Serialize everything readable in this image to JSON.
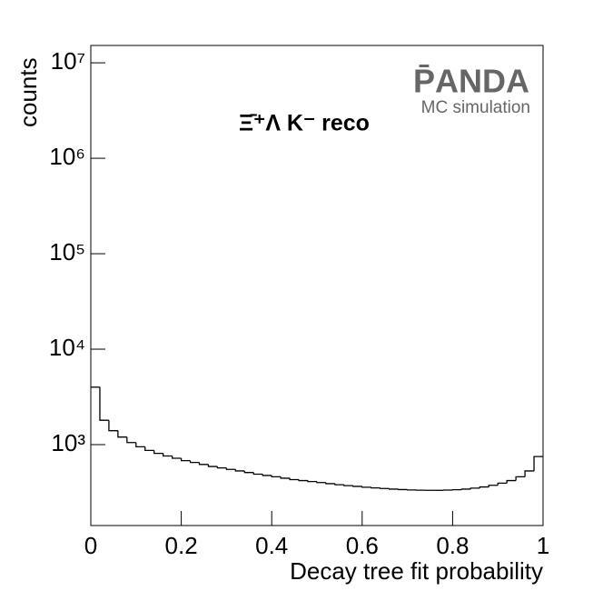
{
  "chart_data": {
    "type": "histogram",
    "title": "Ξ̄⁺Λ K⁻ reco",
    "x_label": "Decay tree fit probability",
    "y_label": "counts",
    "annotations": [
      "P̄ANDA",
      "MC simulation"
    ],
    "bins": [
      0,
      0.02,
      0.04,
      0.06,
      0.08,
      0.1,
      0.12,
      0.14,
      0.16,
      0.18,
      0.2,
      0.22,
      0.24,
      0.26,
      0.28,
      0.3,
      0.32,
      0.34,
      0.36,
      0.38,
      0.4,
      0.42,
      0.44,
      0.46,
      0.48,
      0.5,
      0.52,
      0.54,
      0.56,
      0.58,
      0.6,
      0.62,
      0.64,
      0.66,
      0.68,
      0.7,
      0.72,
      0.74,
      0.76,
      0.78,
      0.8,
      0.82,
      0.84,
      0.86,
      0.88,
      0.9,
      0.92,
      0.94,
      0.96,
      0.98,
      1
    ],
    "values": [
      4000,
      1800,
      1400,
      1200,
      1050,
      950,
      870,
      810,
      760,
      720,
      680,
      650,
      620,
      590,
      570,
      550,
      530,
      510,
      490,
      475,
      460,
      445,
      430,
      420,
      410,
      400,
      390,
      380,
      372,
      365,
      358,
      352,
      347,
      342,
      338,
      335,
      333,
      332,
      332,
      334,
      337,
      342,
      350,
      360,
      375,
      395,
      420,
      460,
      530,
      750
    ],
    "color": "#000000",
    "log_y": true,
    "xlim": [
      0,
      1
    ],
    "xticks": [
      0,
      0.2,
      0.4,
      0.6,
      0.8,
      1
    ],
    "ylim": [
      142,
      15200000
    ],
    "yticks": [
      {
        "value": 1000,
        "label": "10³"
      },
      {
        "value": 10000,
        "label": "10⁴"
      },
      {
        "value": 100000,
        "label": "10⁵"
      },
      {
        "value": 1000000,
        "label": "10⁶"
      },
      {
        "value": 10000000,
        "label": "10⁷"
      }
    ]
  }
}
